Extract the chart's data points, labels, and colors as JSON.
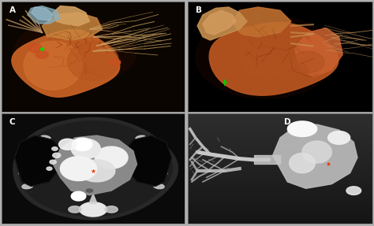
{
  "outer_bg": "#b0b0b0",
  "panel_border": "#888888",
  "panels": [
    "A",
    "B",
    "C",
    "D"
  ],
  "label_color": "#ffffff",
  "label_fontsize": 8,
  "positions": {
    "A": [
      0.005,
      0.505,
      0.488,
      0.488
    ],
    "B": [
      0.503,
      0.505,
      0.492,
      0.488
    ],
    "C": [
      0.005,
      0.01,
      0.488,
      0.488
    ],
    "D": [
      0.503,
      0.01,
      0.492,
      0.488
    ]
  },
  "bg_colors": {
    "A": "#000000",
    "B": "#000000",
    "C": "#1a1a1a",
    "D": "#2a2a2a"
  }
}
